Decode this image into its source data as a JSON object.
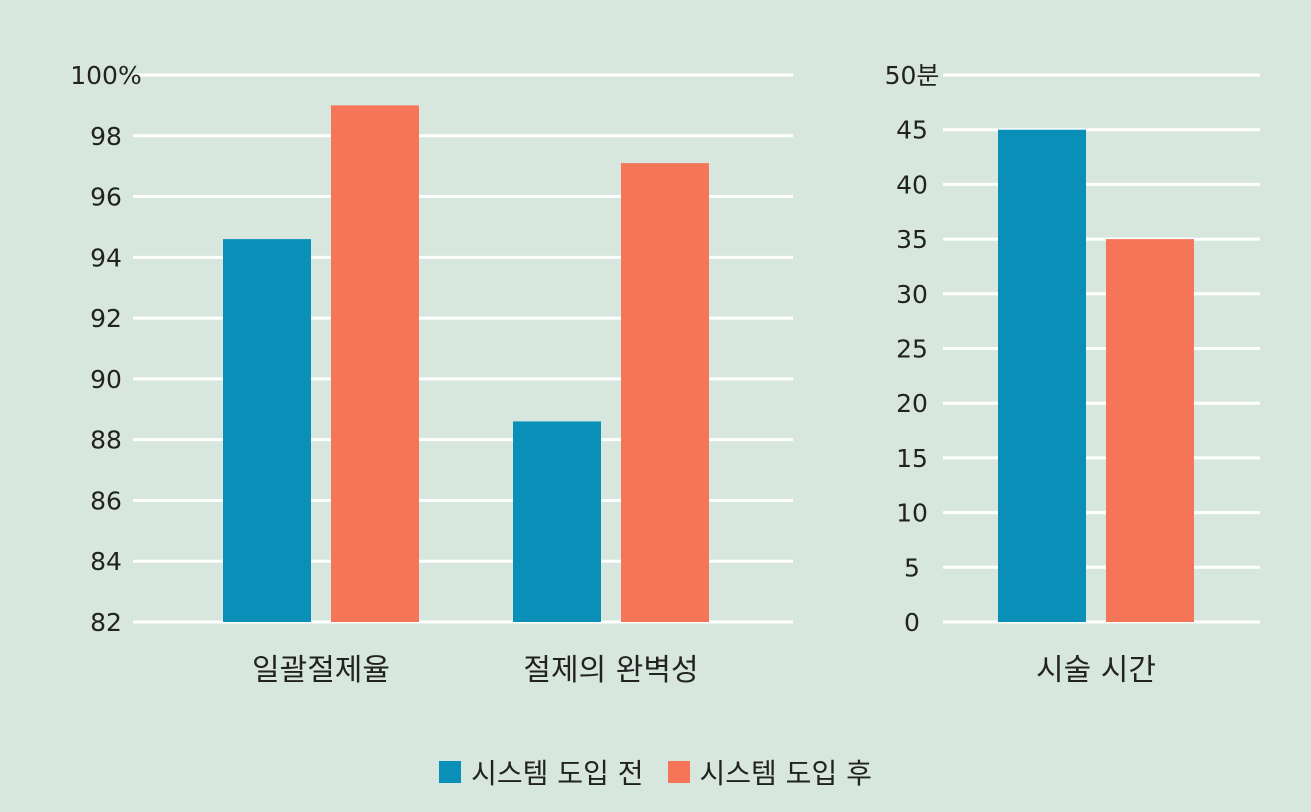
{
  "colors": {
    "before": "#0a8fb9",
    "after": "#f47557",
    "grid": "#ffffff",
    "background": "#d8e7de"
  },
  "legend": {
    "items": [
      {
        "label": "시스템 도입 전",
        "color": "#0a8fb9"
      },
      {
        "label": "시스템 도입 후",
        "color": "#f47557"
      }
    ]
  },
  "chart_data": [
    {
      "type": "bar",
      "categories": [
        "일괄절제율",
        "절제의 완벽성"
      ],
      "series": [
        {
          "name": "시스템 도입 전",
          "values": [
            94.6,
            88.6
          ]
        },
        {
          "name": "시스템 도입 후",
          "values": [
            99.0,
            97.1
          ]
        }
      ],
      "ylim": [
        82,
        100
      ],
      "yticks": [
        "82",
        "84",
        "86",
        "88",
        "90",
        "92",
        "94",
        "96",
        "98",
        "100%"
      ],
      "grid": true
    },
    {
      "type": "bar",
      "categories": [
        "시술 시간"
      ],
      "series": [
        {
          "name": "시스템 도입 전",
          "values": [
            45
          ]
        },
        {
          "name": "시스템 도입 후",
          "values": [
            35
          ]
        }
      ],
      "ylim": [
        0,
        50
      ],
      "yticks": [
        "0",
        "5",
        "10",
        "15",
        "20",
        "25",
        "30",
        "35",
        "40",
        "45",
        "50분"
      ],
      "grid": true
    }
  ]
}
